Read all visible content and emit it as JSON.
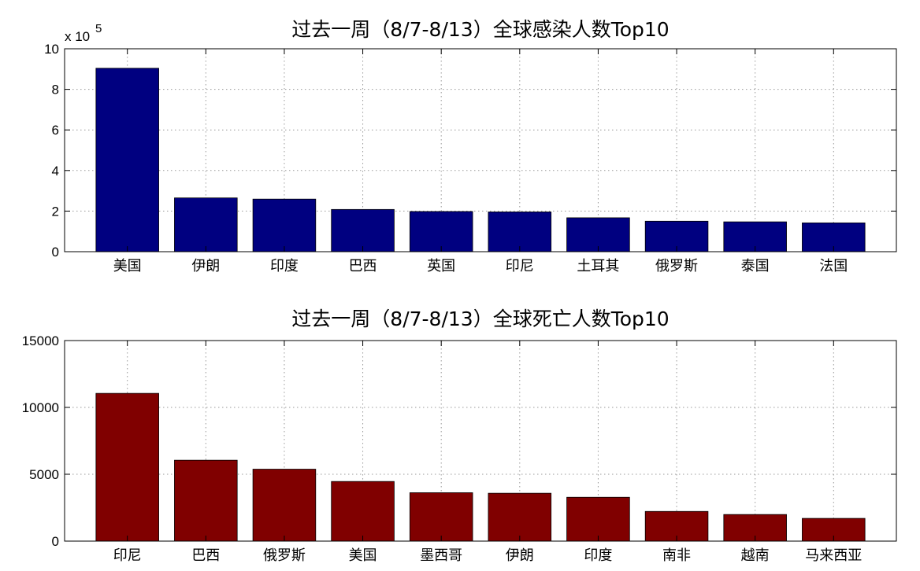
{
  "chart_data": [
    {
      "type": "bar",
      "title": "过去一周（8/7-8/13）全球感染人数Top10",
      "categories": [
        "美国",
        "伊朗",
        "印度",
        "巴西",
        "英国",
        "印尼",
        "土耳其",
        "俄罗斯",
        "泰国",
        "法国"
      ],
      "values": [
        904000,
        265000,
        259000,
        208000,
        198000,
        196000,
        167000,
        150000,
        147000,
        142000
      ],
      "ylim": [
        0,
        1000000
      ],
      "yticks": [
        0,
        200000,
        400000,
        600000,
        800000,
        1000000
      ],
      "ytick_labels": [
        "0",
        "2",
        "4",
        "6",
        "8",
        "10"
      ],
      "y_multiplier_label": "x 10",
      "y_multiplier_exponent": "5",
      "xlabel": "",
      "ylabel": "",
      "grid": true,
      "bar_color": "#000080"
    },
    {
      "type": "bar",
      "title": "过去一周（8/7-8/13）全球死亡人数Top10",
      "categories": [
        "印尼",
        "巴西",
        "俄罗斯",
        "美国",
        "墨西哥",
        "伊朗",
        "印度",
        "南非",
        "越南",
        "马来西亚"
      ],
      "values": [
        11050,
        6050,
        5380,
        4460,
        3620,
        3580,
        3280,
        2220,
        1990,
        1700
      ],
      "ylim": [
        0,
        15000
      ],
      "yticks": [
        0,
        5000,
        10000,
        15000
      ],
      "ytick_labels": [
        "0",
        "5000",
        "10000",
        "15000"
      ],
      "xlabel": "",
      "ylabel": "",
      "grid": true,
      "bar_color": "#800000"
    }
  ]
}
